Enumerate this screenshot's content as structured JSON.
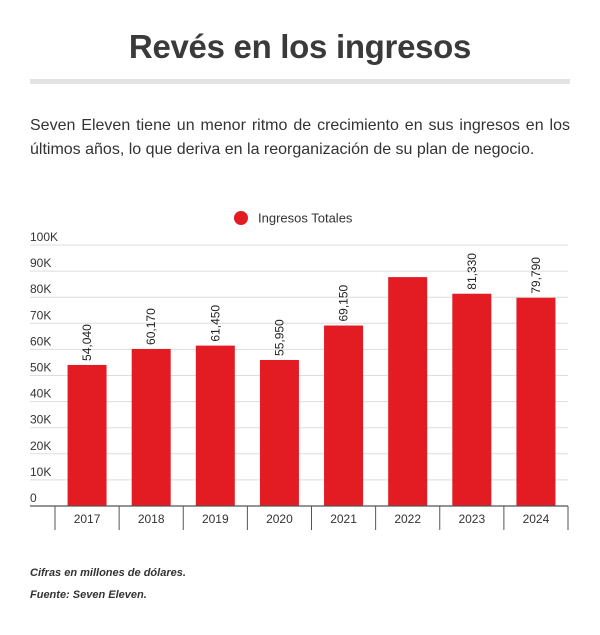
{
  "header": {
    "title": "Revés en los ingresos",
    "subtitle": "Seven Eleven tiene un menor ritmo de crecimiento en sus ingresos en los últimos años, lo que deriva en la reorganización de su plan de negocio."
  },
  "footer": {
    "note": "Cifras en millones de dólares.",
    "source": "Fuente: Seven Eleven."
  },
  "colors": {
    "bar": "#e31b23",
    "grid": "#dddddd",
    "axis": "#555555"
  },
  "chart_data": {
    "type": "bar",
    "categories": [
      "2017",
      "2018",
      "2019",
      "2020",
      "2021",
      "2022",
      "2023",
      "2024"
    ],
    "series": [
      {
        "name": "Ingresos Totales",
        "values": [
          54040,
          60170,
          61450,
          55950,
          69150,
          87700,
          81330,
          79790
        ]
      }
    ],
    "data_labels": [
      "54,040",
      "60,170",
      "61,450",
      "55,950",
      "69,150",
      "",
      "81,330",
      "79,790"
    ],
    "ylim": [
      0,
      100000
    ],
    "yticks": [
      0,
      10000,
      20000,
      30000,
      40000,
      50000,
      60000,
      70000,
      80000,
      90000,
      100000
    ],
    "ytick_labels": [
      "0",
      "10K",
      "20K",
      "30K",
      "40K",
      "50K",
      "60K",
      "70K",
      "80K",
      "90K",
      "100K"
    ],
    "grid": true,
    "legend_position": "top-center"
  }
}
